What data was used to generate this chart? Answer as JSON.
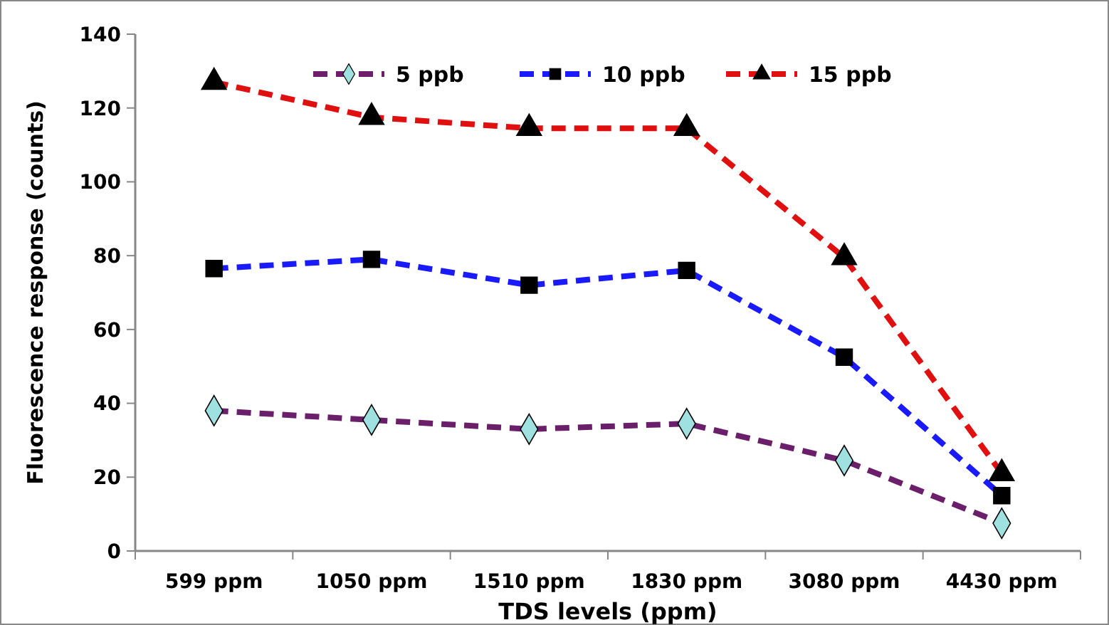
{
  "chart_data": {
    "type": "line",
    "xlabel": "TDS levels (ppm)",
    "ylabel": "Fluorescence response (counts)",
    "categories": [
      "599 ppm",
      "1050 ppm",
      "1510 ppm",
      "1830 ppm",
      "3080 ppm",
      "4430 ppm"
    ],
    "series": [
      {
        "name": "5 ppb",
        "color": "#6b1f6b",
        "marker": "diamond",
        "line_style": "dashed",
        "values": [
          38,
          35.5,
          33,
          34.5,
          24.5,
          7.5
        ]
      },
      {
        "name": "10 ppb",
        "color": "#1a1aff",
        "marker": "square",
        "line_style": "dashed",
        "values": [
          76.5,
          79,
          72,
          76,
          52.5,
          15
        ]
      },
      {
        "name": "15 ppb",
        "color": "#e01010",
        "marker": "triangle",
        "line_style": "dashed",
        "values": [
          127,
          117.5,
          114.5,
          114.5,
          79.5,
          21
        ]
      }
    ],
    "ylim": [
      0,
      140
    ],
    "yticks": [
      0,
      20,
      40,
      60,
      80,
      100,
      120,
      140
    ],
    "grid": false,
    "legend": "top"
  }
}
